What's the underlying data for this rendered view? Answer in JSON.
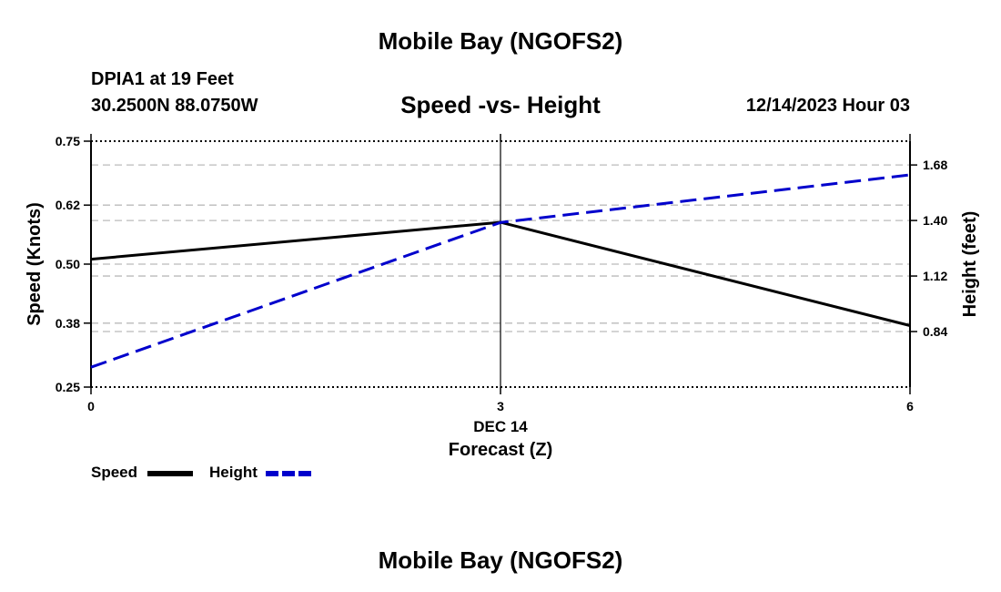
{
  "page": {
    "title_top": "Mobile Bay (NGOFS2)",
    "title_bottom": "Mobile Bay (NGOFS2)",
    "station": "DPIA1 at 19 Feet",
    "coordinates": "30.2500N  88.0750W",
    "chart_title": "Speed -vs- Height",
    "datetime": "12/14/2023 Hour 03"
  },
  "colors": {
    "speed": "#000000",
    "height": "#0000cc",
    "grid": "#bbbbbb"
  },
  "chart_data": {
    "type": "line",
    "title": "Speed -vs- Height",
    "xlabel": "Forecast (Z)",
    "x_date_label": "DEC 14",
    "xlim": [
      0,
      6
    ],
    "x_ticks": [
      0,
      3,
      6
    ],
    "x_tick_labels": [
      "0",
      "3",
      "6"
    ],
    "ylabel_left": "Speed (Knots)",
    "ylim_left": [
      0.25,
      0.75
    ],
    "y_ticks_left": [
      0.25,
      0.38,
      0.5,
      0.62,
      0.75
    ],
    "y_tick_labels_left": [
      "0.25",
      "0.38",
      "0.50",
      "0.62",
      "0.75"
    ],
    "ylabel_right": "Height (feet)",
    "ylim_right": [
      0.56,
      1.8
    ],
    "y_ticks_right": [
      0.84,
      1.12,
      1.4,
      1.68
    ],
    "y_tick_labels_right": [
      "0.84",
      "1.12",
      "1.40",
      "1.68"
    ],
    "grid": true,
    "legend": "bottom-left",
    "series": [
      {
        "name": "Speed",
        "axis": "left",
        "style": "solid",
        "x": [
          0,
          3,
          6
        ],
        "values": [
          0.51,
          0.585,
          0.375
        ]
      },
      {
        "name": "Height",
        "axis": "right",
        "style": "dashed",
        "x": [
          0,
          3,
          6
        ],
        "values": [
          0.66,
          1.39,
          1.63
        ]
      }
    ]
  }
}
